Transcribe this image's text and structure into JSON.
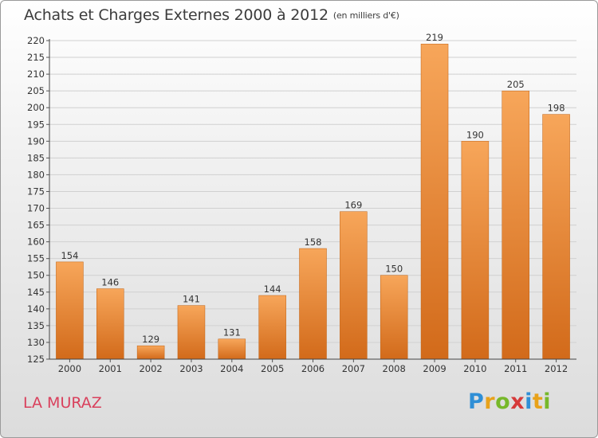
{
  "chart_data": {
    "type": "bar",
    "title": "Achats et Charges Externes 2000 à 2012",
    "subtitle": "(en milliers d'€)",
    "categories": [
      "2000",
      "2001",
      "2002",
      "2003",
      "2004",
      "2005",
      "2006",
      "2007",
      "2008",
      "2009",
      "2010",
      "2011",
      "2012"
    ],
    "values": [
      154,
      146,
      129,
      141,
      131,
      144,
      158,
      169,
      150,
      219,
      190,
      205,
      198
    ],
    "ylim": [
      125,
      220
    ],
    "yticks": [
      125,
      130,
      135,
      140,
      145,
      150,
      155,
      160,
      165,
      170,
      175,
      180,
      185,
      190,
      195,
      200,
      205,
      210,
      215,
      220
    ],
    "grid": true,
    "legend": "none",
    "bar_color": "#f0953f"
  },
  "commune": "LA MURAZ",
  "brand": {
    "letters": [
      "P",
      "r",
      "o",
      "x",
      "i",
      "t",
      "i"
    ],
    "colors": [
      "#2f8fd6",
      "#e8a21a",
      "#77b82a",
      "#d63a3a",
      "#2f8fd6",
      "#e8a21a",
      "#77b82a"
    ]
  }
}
